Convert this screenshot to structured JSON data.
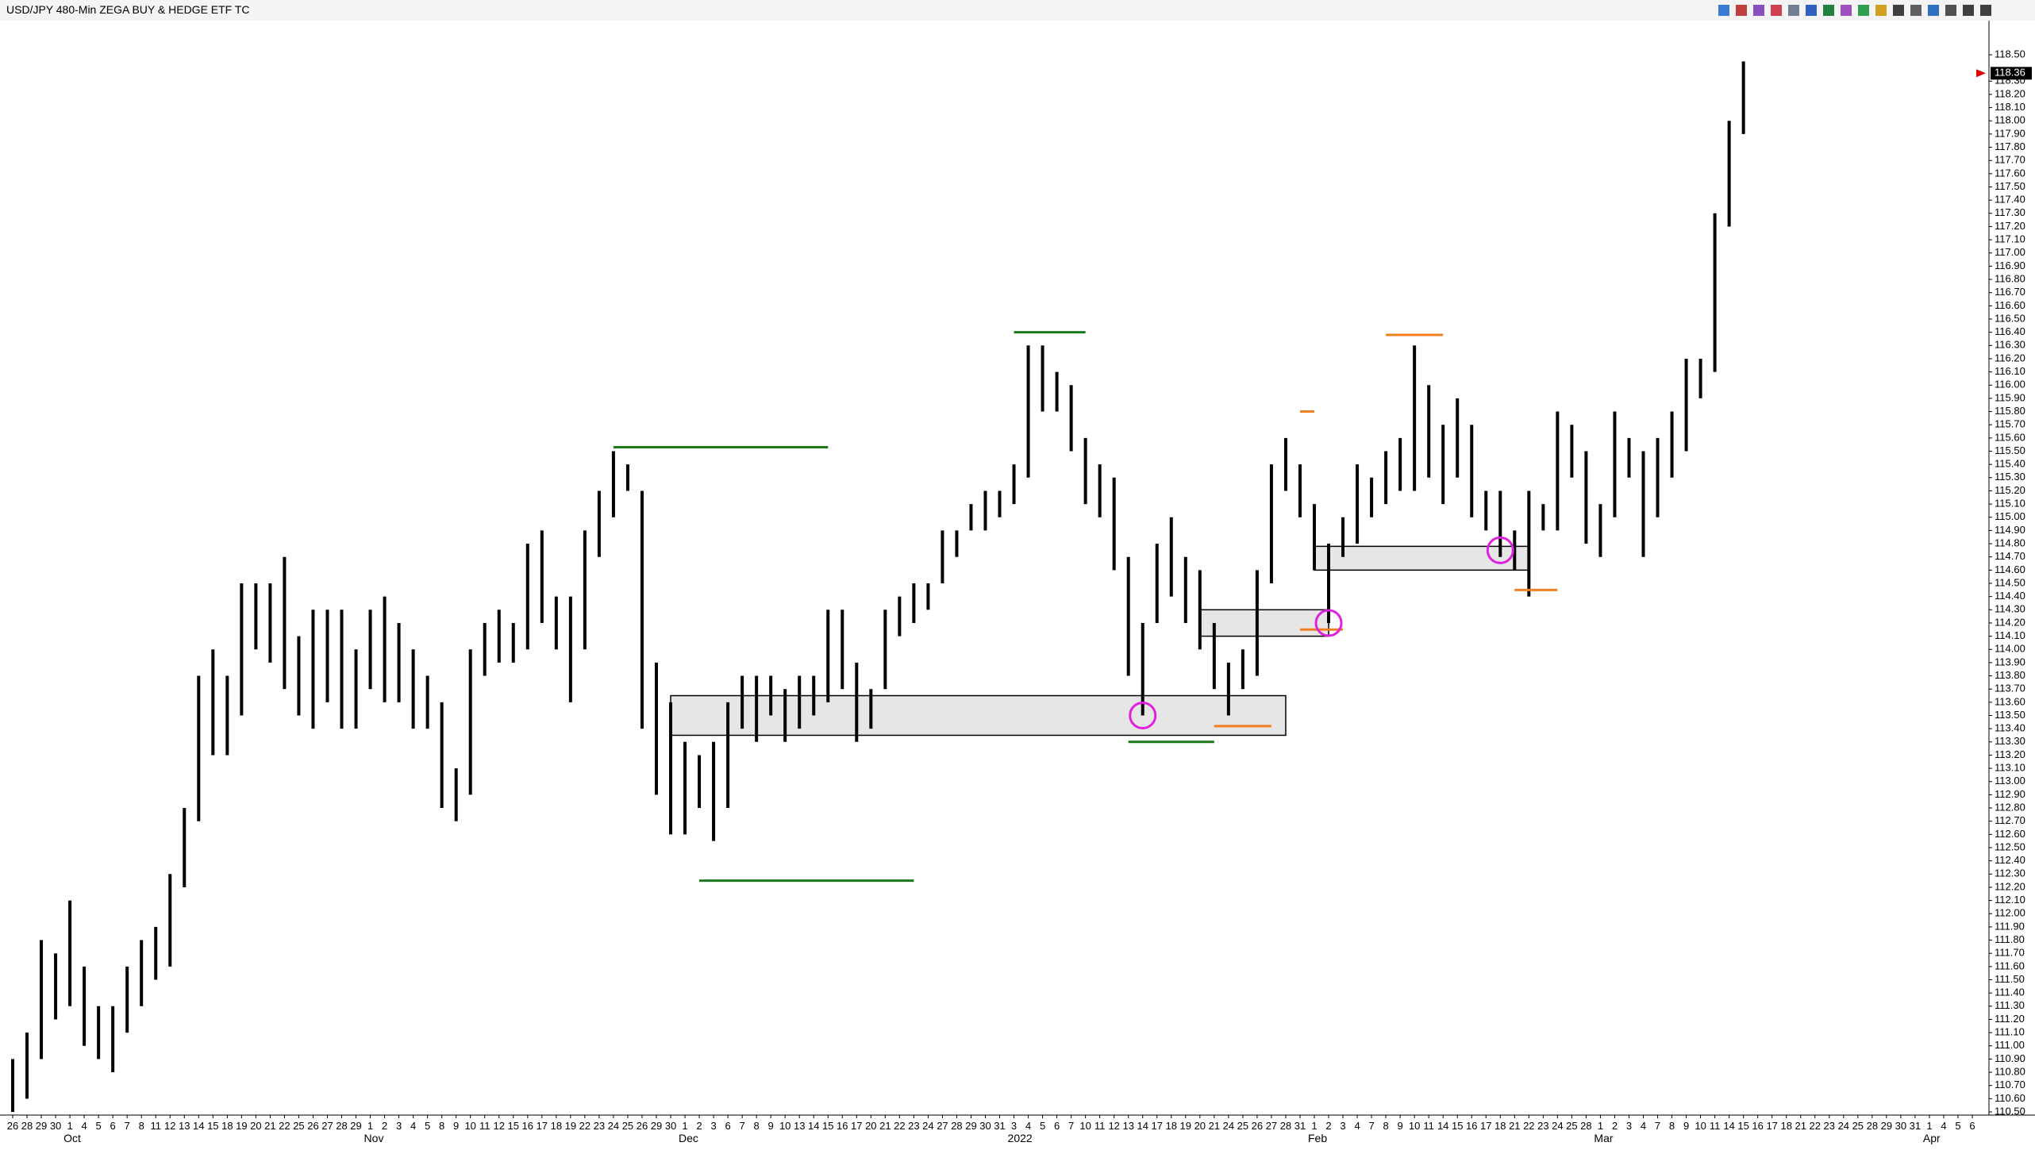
{
  "chart_data": {
    "type": "ohlc",
    "title": "USD/JPY 480-Min ZEGA BUY & HEDGE ETF TC",
    "categories": [
      "26",
      "28",
      "29",
      "30",
      "1",
      "4",
      "5",
      "6",
      "7",
      "8",
      "11",
      "12",
      "13",
      "14",
      "15",
      "18",
      "19",
      "20",
      "21",
      "22",
      "25",
      "26",
      "27",
      "28",
      "29",
      "1",
      "2",
      "3",
      "4",
      "5",
      "8",
      "9",
      "10",
      "11",
      "12",
      "15",
      "16",
      "17",
      "18",
      "19",
      "22",
      "23",
      "24",
      "25",
      "26",
      "29",
      "30",
      "1",
      "2",
      "3",
      "6",
      "7",
      "8",
      "9",
      "10",
      "13",
      "14",
      "15",
      "16",
      "17",
      "20",
      "21",
      "22",
      "23",
      "24",
      "27",
      "28",
      "29",
      "30",
      "31",
      "3",
      "4",
      "5",
      "6",
      "7",
      "10",
      "11",
      "12",
      "13",
      "14",
      "17",
      "18",
      "19",
      "20",
      "21",
      "24",
      "25",
      "26",
      "27",
      "28",
      "31",
      "1",
      "2",
      "3",
      "4",
      "7",
      "8",
      "9",
      "10",
      "11",
      "14",
      "15",
      "16",
      "17",
      "18",
      "21",
      "22",
      "23",
      "24",
      "25",
      "28",
      "1",
      "2",
      "3",
      "4",
      "7",
      "8",
      "9",
      "10",
      "11",
      "14",
      "15",
      "16",
      "17",
      "18",
      "21",
      "22",
      "23",
      "24",
      "25",
      "28",
      "29",
      "30",
      "31",
      "1",
      "4",
      "5",
      "6"
    ],
    "month_labels": [
      null,
      null,
      null,
      null,
      "Oct",
      null,
      null,
      null,
      null,
      null,
      null,
      null,
      null,
      null,
      null,
      null,
      null,
      null,
      null,
      null,
      null,
      null,
      null,
      null,
      null,
      "Nov",
      null,
      null,
      null,
      null,
      null,
      null,
      null,
      null,
      null,
      null,
      null,
      null,
      null,
      null,
      null,
      null,
      null,
      null,
      null,
      null,
      null,
      "Dec",
      null,
      null,
      null,
      null,
      null,
      null,
      null,
      null,
      null,
      null,
      null,
      null,
      null,
      null,
      null,
      null,
      null,
      null,
      null,
      null,
      null,
      null,
      "2022",
      null,
      null,
      null,
      null,
      null,
      null,
      null,
      null,
      null,
      null,
      null,
      null,
      null,
      null,
      null,
      null,
      null,
      null,
      null,
      null,
      "Feb",
      null,
      null,
      null,
      null,
      null,
      null,
      null,
      null,
      null,
      null,
      null,
      null,
      null,
      null,
      null,
      null,
      null,
      null,
      null,
      "Mar",
      null,
      null,
      null,
      null,
      null,
      null,
      null,
      null,
      null,
      null,
      null,
      null,
      null,
      null,
      null,
      null,
      null,
      null,
      null,
      null,
      null,
      null,
      "Apr",
      null,
      null,
      null
    ],
    "high": [
      110.9,
      111.1,
      111.8,
      111.7,
      112.1,
      111.6,
      111.3,
      111.3,
      111.6,
      111.8,
      111.9,
      112.3,
      112.8,
      113.8,
      114.0,
      113.8,
      114.5,
      114.5,
      114.5,
      114.7,
      114.1,
      114.3,
      114.3,
      114.3,
      114.0,
      114.3,
      114.4,
      114.2,
      114.0,
      113.8,
      113.6,
      113.1,
      114.0,
      114.2,
      114.3,
      114.2,
      114.8,
      114.9,
      114.4,
      114.4,
      114.9,
      115.2,
      115.5,
      115.4,
      115.2,
      113.9,
      113.6,
      113.3,
      113.2,
      113.3,
      113.6,
      113.8,
      113.8,
      113.8,
      113.7,
      113.8,
      113.8,
      114.3,
      114.3,
      113.9,
      113.7,
      114.3,
      114.4,
      114.5,
      114.5,
      114.9,
      114.9,
      115.1,
      115.2,
      115.2,
      115.4,
      116.3,
      116.3,
      116.1,
      116.0,
      115.6,
      115.4,
      115.3,
      114.7,
      114.2,
      114.8,
      115.0,
      114.7,
      114.6,
      114.2,
      113.9,
      114.0,
      114.6,
      115.4,
      115.6,
      115.4,
      115.1,
      114.8,
      115.0,
      115.4,
      115.3,
      115.5,
      115.6,
      116.3,
      116.0,
      115.7,
      115.9,
      115.7,
      115.2,
      115.2,
      114.9,
      115.2,
      115.1,
      115.8,
      115.7,
      115.5,
      115.1,
      115.8,
      115.6,
      115.5,
      115.6,
      115.8,
      116.2,
      116.2,
      117.3,
      118.0,
      118.45,
      null,
      null,
      null,
      null,
      null,
      null,
      null,
      null,
      null,
      null,
      null,
      null,
      null,
      null,
      null,
      null
    ],
    "low": [
      110.5,
      110.6,
      110.9,
      111.2,
      111.3,
      111.0,
      110.9,
      110.8,
      111.1,
      111.3,
      111.5,
      111.6,
      112.2,
      112.7,
      113.2,
      113.2,
      113.5,
      114.0,
      113.9,
      113.7,
      113.5,
      113.4,
      113.6,
      113.4,
      113.4,
      113.7,
      113.6,
      113.6,
      113.4,
      113.4,
      112.8,
      112.7,
      112.9,
      113.8,
      113.9,
      113.9,
      114.0,
      114.2,
      114.0,
      113.6,
      114.0,
      114.7,
      115.0,
      115.2,
      113.4,
      112.9,
      112.6,
      112.6,
      112.8,
      112.55,
      112.8,
      113.4,
      113.3,
      113.5,
      113.3,
      113.4,
      113.5,
      113.6,
      113.7,
      113.3,
      113.4,
      113.7,
      114.1,
      114.2,
      114.3,
      114.5,
      114.7,
      114.9,
      114.9,
      115.0,
      115.1,
      115.3,
      115.8,
      115.8,
      115.5,
      115.1,
      115.0,
      114.6,
      113.8,
      113.5,
      114.2,
      114.4,
      114.2,
      114.0,
      113.7,
      113.5,
      113.7,
      113.8,
      114.5,
      115.2,
      115.0,
      114.6,
      114.2,
      114.7,
      114.8,
      115.0,
      115.1,
      115.2,
      115.2,
      115.3,
      115.1,
      115.3,
      115.0,
      114.9,
      114.7,
      114.6,
      114.4,
      114.9,
      114.9,
      115.3,
      114.8,
      114.7,
      115.0,
      115.3,
      114.7,
      115.0,
      115.3,
      115.5,
      115.9,
      116.1,
      117.2,
      117.9,
      null,
      null,
      null,
      null,
      null,
      null,
      null,
      null,
      null,
      null,
      null,
      null,
      null,
      null,
      null,
      null
    ],
    "color": "#000000",
    "last_price": 118.36,
    "ylim": [
      110.5,
      118.5
    ],
    "yticks": [
      {
        "value": 110.5,
        "label": "110.50"
      },
      {
        "value": 110.6,
        "label": "110.60"
      },
      {
        "value": 110.7,
        "label": "110.70"
      },
      {
        "value": 110.8,
        "label": "110.80"
      },
      {
        "value": 110.9,
        "label": "110.90"
      },
      {
        "value": 111.0,
        "label": "111.00"
      },
      {
        "value": 111.1,
        "label": "111.10"
      },
      {
        "value": 111.2,
        "label": "111.20"
      },
      {
        "value": 111.3,
        "label": "111.30"
      },
      {
        "value": 111.4,
        "label": "111.40"
      },
      {
        "value": 111.5,
        "label": "111.50"
      },
      {
        "value": 111.6,
        "label": "111.60"
      },
      {
        "value": 111.7,
        "label": "111.70"
      },
      {
        "value": 111.8,
        "label": "111.80"
      },
      {
        "value": 111.9,
        "label": "111.90"
      },
      {
        "value": 112.0,
        "label": "112.00"
      },
      {
        "value": 112.1,
        "label": "112.10"
      },
      {
        "value": 112.2,
        "label": "112.20"
      },
      {
        "value": 112.3,
        "label": "112.30"
      },
      {
        "value": 112.4,
        "label": "112.40"
      },
      {
        "value": 112.5,
        "label": "112.50"
      },
      {
        "value": 112.6,
        "label": "112.60"
      },
      {
        "value": 112.7,
        "label": "112.70"
      },
      {
        "value": 112.8,
        "label": "112.80"
      },
      {
        "value": 112.9,
        "label": "112.90"
      },
      {
        "value": 113.0,
        "label": "113.00"
      },
      {
        "value": 113.1,
        "label": "113.10"
      },
      {
        "value": 113.2,
        "label": "113.20"
      },
      {
        "value": 113.3,
        "label": "113.30"
      },
      {
        "value": 113.4,
        "label": "113.40"
      },
      {
        "value": 113.5,
        "label": "113.50"
      },
      {
        "value": 113.6,
        "label": "113.60"
      },
      {
        "value": 113.7,
        "label": "113.70"
      },
      {
        "value": 113.8,
        "label": "113.80"
      },
      {
        "value": 113.9,
        "label": "113.90"
      },
      {
        "value": 114.0,
        "label": "114.00"
      },
      {
        "value": 114.1,
        "label": "114.10"
      },
      {
        "value": 114.2,
        "label": "114.20"
      },
      {
        "value": 114.3,
        "label": "114.30"
      },
      {
        "value": 114.4,
        "label": "114.40"
      },
      {
        "value": 114.5,
        "label": "114.50"
      },
      {
        "value": 114.6,
        "label": "114.60"
      },
      {
        "value": 114.7,
        "label": "114.70"
      },
      {
        "value": 114.8,
        "label": "114.80"
      },
      {
        "value": 114.9,
        "label": "114.90"
      },
      {
        "value": 115.0,
        "label": "115.00"
      },
      {
        "value": 115.1,
        "label": "115.10"
      },
      {
        "value": 115.2,
        "label": "115.20"
      },
      {
        "value": 115.3,
        "label": "115.30"
      },
      {
        "value": 115.4,
        "label": "115.40"
      },
      {
        "value": 115.5,
        "label": "115.50"
      },
      {
        "value": 115.6,
        "label": "115.60"
      },
      {
        "value": 115.7,
        "label": "115.70"
      },
      {
        "value": 115.8,
        "label": "115.80"
      },
      {
        "value": 115.9,
        "label": "115.90"
      },
      {
        "value": 116.0,
        "label": "116.00"
      },
      {
        "value": 116.1,
        "label": "116.10"
      },
      {
        "value": 116.2,
        "label": "116.20"
      },
      {
        "value": 116.3,
        "label": "116.30"
      },
      {
        "value": 116.4,
        "label": "116.40"
      },
      {
        "value": 116.5,
        "label": "116.50"
      },
      {
        "value": 116.6,
        "label": "116.60"
      },
      {
        "value": 116.7,
        "label": "116.70"
      },
      {
        "value": 116.8,
        "label": "116.80"
      },
      {
        "value": 116.9,
        "label": "116.90"
      },
      {
        "value": 117.0,
        "label": "117.00"
      },
      {
        "value": 117.1,
        "label": "117.10"
      },
      {
        "value": 117.2,
        "label": "117.20"
      },
      {
        "value": 117.3,
        "label": "117.30"
      },
      {
        "value": 117.4,
        "label": "117.40"
      },
      {
        "value": 117.5,
        "label": "117.50"
      },
      {
        "value": 117.6,
        "label": "117.60"
      },
      {
        "value": 117.7,
        "label": "117.70"
      },
      {
        "value": 117.8,
        "label": "117.80"
      },
      {
        "value": 117.9,
        "label": "117.90"
      },
      {
        "value": 118.0,
        "label": "118.00"
      },
      {
        "value": 118.1,
        "label": "118.10"
      },
      {
        "value": 118.2,
        "label": "118.20"
      },
      {
        "value": 118.3,
        "label": "118.30"
      },
      {
        "value": 118.5,
        "label": "118.50"
      }
    ],
    "zones": [
      {
        "from": 46,
        "to": 89,
        "low": 113.35,
        "high": 113.65
      },
      {
        "from": 83,
        "to": 92,
        "low": 114.1,
        "high": 114.3
      },
      {
        "from": 91,
        "to": 106,
        "low": 114.6,
        "high": 114.78
      }
    ],
    "levels": [
      {
        "from": 42,
        "to": 57,
        "value": 115.53,
        "color": "#1a7a1a"
      },
      {
        "from": 70,
        "to": 75,
        "value": 116.4,
        "color": "#1a7a1a"
      },
      {
        "from": 48,
        "to": 63,
        "value": 112.25,
        "color": "#1a7a1a"
      },
      {
        "from": 78,
        "to": 84,
        "value": 113.3,
        "color": "#1a7a1a"
      },
      {
        "from": 84,
        "to": 88,
        "value": 113.42,
        "color": "#f08020"
      },
      {
        "from": 90,
        "to": 91,
        "value": 115.8,
        "color": "#f08020"
      },
      {
        "from": 90,
        "to": 93,
        "value": 114.15,
        "color": "#f08020"
      },
      {
        "from": 96,
        "to": 100,
        "value": 116.38,
        "color": "#f08020"
      },
      {
        "from": 105,
        "to": 108,
        "value": 114.45,
        "color": "#f08020"
      }
    ],
    "circles": [
      {
        "at": 79,
        "value": 113.5,
        "color": "#e020e0"
      },
      {
        "at": 92,
        "value": 114.2,
        "color": "#e020e0"
      },
      {
        "at": 104,
        "value": 114.75,
        "color": "#e020e0"
      }
    ]
  }
}
